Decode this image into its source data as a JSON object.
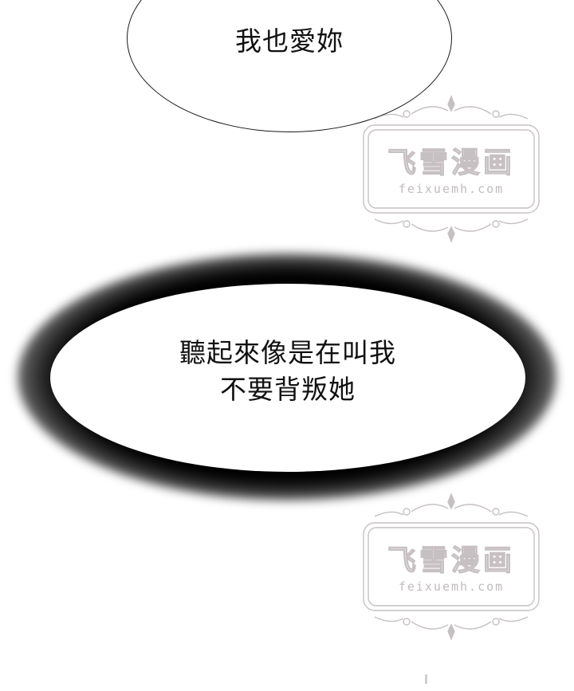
{
  "bubbles": [
    {
      "style": "outlined",
      "lines": [
        "我也愛妳"
      ]
    },
    {
      "style": "dark-glow",
      "lines": [
        "聽起來像是在叫我",
        "不要背叛她"
      ]
    }
  ],
  "watermark": {
    "title": "飞雪漫画",
    "url": "feixuemh.com",
    "color": "#9a8e92"
  }
}
